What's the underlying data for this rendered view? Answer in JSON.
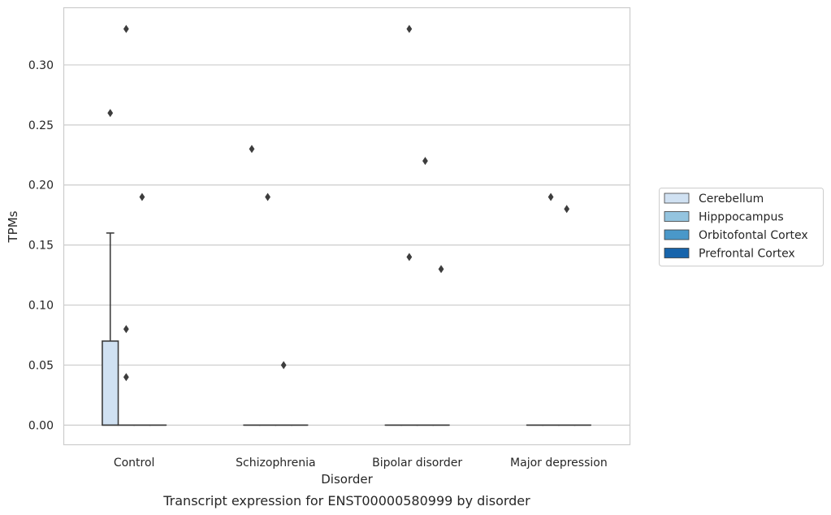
{
  "chart_data": {
    "type": "box",
    "title": "",
    "caption": "Transcript expression for ENST00000580999 by disorder",
    "xlabel": "Disorder",
    "ylabel": "TPMs",
    "ylim": [
      -0.016,
      0.348
    ],
    "yticks": [
      0.0,
      0.05,
      0.1,
      0.15,
      0.2,
      0.25,
      0.3
    ],
    "ytick_labels": [
      "0.00",
      "0.05",
      "0.10",
      "0.15",
      "0.20",
      "0.25",
      "0.30"
    ],
    "grid": true,
    "legend_position": "right",
    "categories": [
      "Control",
      "Schizophrenia",
      "Bipolar disorder",
      "Major depression"
    ],
    "series": [
      {
        "name": "Cerebellum",
        "color": "#d0e1f2",
        "boxes": [
          {
            "category": "Control",
            "q1": 0.0,
            "median": 0.0,
            "q3": 0.07,
            "whisker_low": 0.0,
            "whisker_high": 0.16,
            "outliers": [
              0.26
            ]
          },
          {
            "category": "Schizophrenia",
            "q1": 0.0,
            "median": 0.0,
            "q3": 0.0,
            "whisker_low": 0.0,
            "whisker_high": 0.0,
            "outliers": [
              0.23
            ]
          },
          {
            "category": "Bipolar disorder",
            "q1": 0.0,
            "median": 0.0,
            "q3": 0.0,
            "whisker_low": 0.0,
            "whisker_high": 0.0,
            "outliers": []
          },
          {
            "category": "Major depression",
            "q1": 0.0,
            "median": 0.0,
            "q3": 0.0,
            "whisker_low": 0.0,
            "whisker_high": 0.0,
            "outliers": []
          }
        ]
      },
      {
        "name": "Hipppocampus",
        "color": "#94c4df",
        "boxes": [
          {
            "category": "Control",
            "q1": 0.0,
            "median": 0.0,
            "q3": 0.0,
            "whisker_low": 0.0,
            "whisker_high": 0.0,
            "outliers": [
              0.33,
              0.08,
              0.04
            ]
          },
          {
            "category": "Schizophrenia",
            "q1": 0.0,
            "median": 0.0,
            "q3": 0.0,
            "whisker_low": 0.0,
            "whisker_high": 0.0,
            "outliers": [
              0.19
            ]
          },
          {
            "category": "Bipolar disorder",
            "q1": 0.0,
            "median": 0.0,
            "q3": 0.0,
            "whisker_low": 0.0,
            "whisker_high": 0.0,
            "outliers": [
              0.33,
              0.14
            ]
          },
          {
            "category": "Major depression",
            "q1": 0.0,
            "median": 0.0,
            "q3": 0.0,
            "whisker_low": 0.0,
            "whisker_high": 0.0,
            "outliers": [
              0.19
            ]
          }
        ]
      },
      {
        "name": "Orbitofontal Cortex",
        "color": "#4a98c9",
        "boxes": [
          {
            "category": "Control",
            "q1": 0.0,
            "median": 0.0,
            "q3": 0.0,
            "whisker_low": 0.0,
            "whisker_high": 0.0,
            "outliers": [
              0.19
            ]
          },
          {
            "category": "Schizophrenia",
            "q1": 0.0,
            "median": 0.0,
            "q3": 0.0,
            "whisker_low": 0.0,
            "whisker_high": 0.0,
            "outliers": [
              0.05
            ]
          },
          {
            "category": "Bipolar disorder",
            "q1": 0.0,
            "median": 0.0,
            "q3": 0.0,
            "whisker_low": 0.0,
            "whisker_high": 0.0,
            "outliers": [
              0.22
            ]
          },
          {
            "category": "Major depression",
            "q1": 0.0,
            "median": 0.0,
            "q3": 0.0,
            "whisker_low": 0.0,
            "whisker_high": 0.0,
            "outliers": [
              0.18
            ]
          }
        ]
      },
      {
        "name": "Prefrontal Cortex",
        "color": "#1764ab",
        "boxes": [
          {
            "category": "Control",
            "q1": 0.0,
            "median": 0.0,
            "q3": 0.0,
            "whisker_low": 0.0,
            "whisker_high": 0.0,
            "outliers": []
          },
          {
            "category": "Schizophrenia",
            "q1": 0.0,
            "median": 0.0,
            "q3": 0.0,
            "whisker_low": 0.0,
            "whisker_high": 0.0,
            "outliers": []
          },
          {
            "category": "Bipolar disorder",
            "q1": 0.0,
            "median": 0.0,
            "q3": 0.0,
            "whisker_low": 0.0,
            "whisker_high": 0.0,
            "outliers": [
              0.13
            ]
          },
          {
            "category": "Major depression",
            "q1": 0.0,
            "median": 0.0,
            "q3": 0.0,
            "whisker_low": 0.0,
            "whisker_high": 0.0,
            "outliers": []
          }
        ]
      }
    ],
    "colors": {
      "grid": "#cccccc",
      "frame": "#cccccc",
      "box_edge": "#3d3d3d",
      "outlier": "#3d3d3d"
    }
  }
}
